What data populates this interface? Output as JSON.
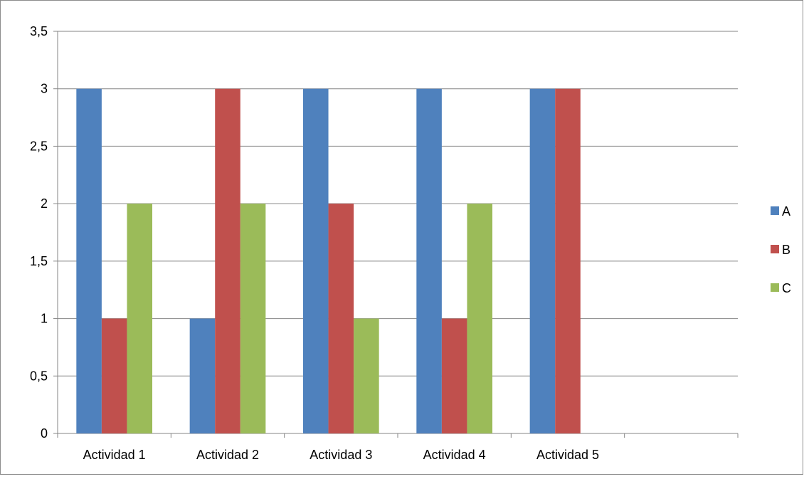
{
  "chart_data": {
    "type": "bar",
    "title": "",
    "xlabel": "",
    "ylabel": "",
    "categories": [
      "Actividad 1",
      "Actividad 2",
      "Actividad 3",
      "Actividad 4",
      "Actividad 5",
      ""
    ],
    "series": [
      {
        "name": "A",
        "color": "#4F81BD",
        "values": [
          3,
          1,
          3,
          3,
          3,
          null
        ]
      },
      {
        "name": "B",
        "color": "#C0504D",
        "values": [
          1,
          3,
          2,
          1,
          3,
          null
        ]
      },
      {
        "name": "C",
        "color": "#9BBB59",
        "values": [
          2,
          2,
          1,
          2,
          0,
          null
        ]
      }
    ],
    "ylim": [
      0,
      3.5
    ],
    "yticks": [
      0,
      0.5,
      1,
      1.5,
      2,
      2.5,
      3,
      3.5
    ],
    "ytick_labels": [
      "0",
      "0,5",
      "1",
      "1,5",
      "2",
      "2,5",
      "3",
      "3,5"
    ],
    "grid": true,
    "legend_position": "right"
  }
}
